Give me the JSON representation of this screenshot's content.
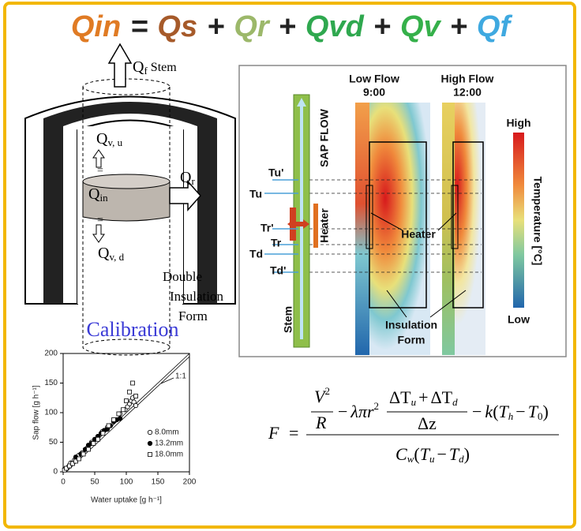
{
  "equation": {
    "terms": [
      {
        "text": "Qin",
        "color": "#e07b24"
      },
      {
        "text": "=",
        "color": "#222222"
      },
      {
        "text": "Qs",
        "color": "#a65a2a"
      },
      {
        "text": "+",
        "color": "#222222"
      },
      {
        "text": "Qr",
        "color": "#9cb86a"
      },
      {
        "text": "+",
        "color": "#222222"
      },
      {
        "text": "Qvd",
        "color": "#2fa84f"
      },
      {
        "text": "+",
        "color": "#222222"
      },
      {
        "text": "Qv",
        "color": "#35b04a"
      },
      {
        "text": "+",
        "color": "#222222"
      },
      {
        "text": "Qf",
        "color": "#3fa9e0"
      }
    ]
  },
  "heat_balance_diagram": {
    "qf": {
      "main": "Q",
      "sub": "f"
    },
    "stem": "Stem",
    "qvu": {
      "main": "Q",
      "sub": "v, u"
    },
    "qin": {
      "main": "Q",
      "sub": "in"
    },
    "qr": {
      "main": "Q",
      "sub": "r"
    },
    "qvd": {
      "main": "Q",
      "sub": "v, d"
    },
    "insulation": [
      "Double",
      "Insulation",
      "Form"
    ]
  },
  "calibration": {
    "title": "Calibration",
    "chart": {
      "type": "scatter",
      "xlabel": "Water uptake [g h⁻¹]",
      "ylabel": "Sap flow [g h⁻¹]",
      "xlim": [
        0,
        200
      ],
      "ylim": [
        0,
        200
      ],
      "xticks": [
        0,
        50,
        100,
        150,
        200
      ],
      "yticks": [
        0,
        50,
        100,
        150,
        200
      ],
      "annotation": "1:1",
      "series": [
        {
          "name": "8.0mm",
          "marker": "open-circle",
          "x": [
            3,
            8,
            12,
            18,
            25,
            30,
            38,
            45,
            55,
            62,
            70,
            80,
            90,
            98,
            102,
            105,
            108,
            110,
            112,
            115
          ],
          "y": [
            5,
            8,
            15,
            20,
            28,
            32,
            40,
            50,
            58,
            68,
            75,
            85,
            98,
            105,
            110,
            115,
            120,
            125,
            118,
            112
          ]
        },
        {
          "name": "13.2mm",
          "marker": "filled-circle",
          "x": [
            20,
            28,
            35,
            40,
            45,
            50,
            55,
            60,
            65,
            70,
            75,
            80,
            85,
            90
          ],
          "y": [
            25,
            30,
            38,
            45,
            48,
            55,
            60,
            65,
            70,
            72,
            78,
            85,
            88,
            90
          ]
        },
        {
          "name": "18.0mm",
          "marker": "open-square",
          "x": [
            2,
            5,
            10,
            15,
            20,
            25,
            32,
            40,
            48,
            55,
            63,
            72,
            80,
            88,
            95,
            100,
            105,
            110,
            115
          ],
          "y": [
            3,
            6,
            10,
            14,
            18,
            22,
            30,
            38,
            48,
            55,
            65,
            78,
            88,
            98,
            105,
            120,
            135,
            150,
            128
          ]
        }
      ]
    }
  },
  "thermal_panel": {
    "low_flow": {
      "title": "Low Flow",
      "time": "9:00"
    },
    "high_flow": {
      "title": "High Flow",
      "time": "12:00"
    },
    "scale_high": "High",
    "scale_low": "Low",
    "scale_title": "Temperature [°C]",
    "sap_flow": "SAP FLOW",
    "heater_side": "Heater",
    "stem": "Stem",
    "sensors": [
      "Tu'",
      "Tu",
      "Tr'",
      "Tr",
      "Td",
      "Td'"
    ],
    "heater": "Heater",
    "insulation": [
      "Insulation",
      "Form"
    ]
  },
  "formula": {
    "F": "F",
    "eq": "=",
    "V": "V",
    "two": "2",
    "R": "R",
    "minus": "−",
    "lambda_pi_r": "λπr",
    "delta_T": "ΔT",
    "u": "u",
    "plus": "+",
    "d": "d",
    "delta_z": "Δz",
    "k": "k",
    "open": "(",
    "close": ")",
    "T": "T",
    "h": "h",
    "zero": "0",
    "C": "C",
    "w": "w"
  }
}
